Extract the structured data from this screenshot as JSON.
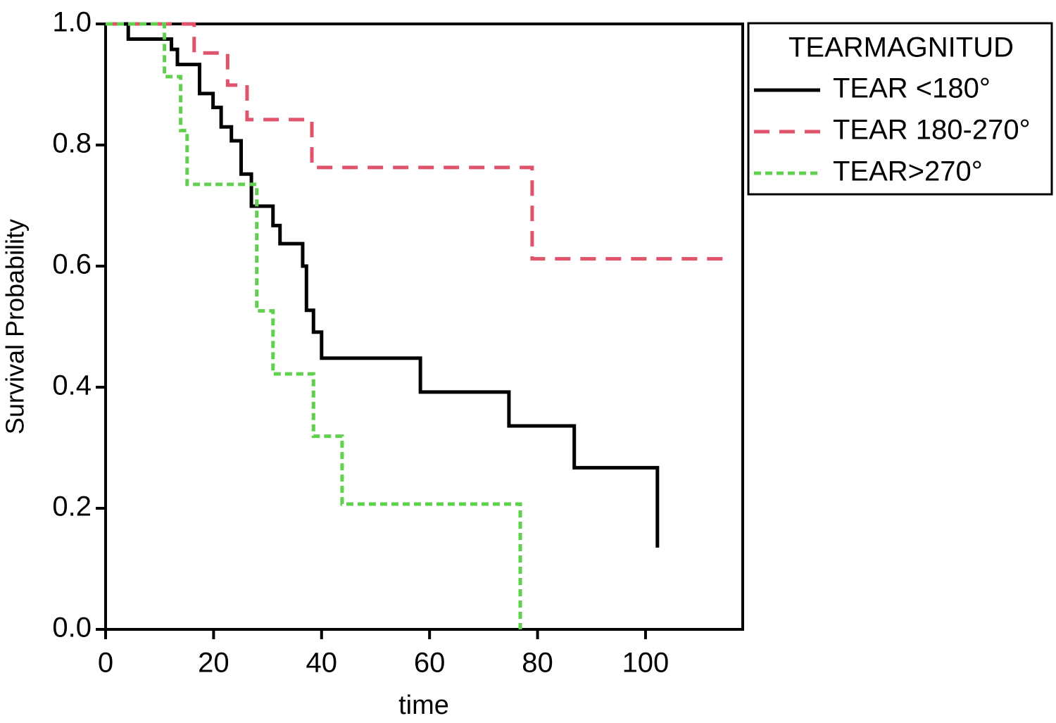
{
  "chart_data": {
    "type": "step",
    "x_label": "time",
    "y_label": "Survival Probability",
    "xlim": [
      0,
      118
    ],
    "ylim": [
      0,
      1
    ],
    "xticks": [
      0,
      20,
      40,
      60,
      80,
      100
    ],
    "yticks": [
      {
        "value": 0,
        "label": "0.0"
      },
      0.2,
      0.4,
      0.6,
      0.8,
      {
        "value": 1,
        "label": "1.0"
      }
    ],
    "legend_title": "TEARMAGNITUD",
    "legend_position": "outside-right",
    "series": [
      {
        "name": "TEAR <180°",
        "color": "#000000",
        "line_style": "solid",
        "x": [
          0,
          4.2,
          12.2,
          13.3,
          17.4,
          19.9,
          21.4,
          23.3,
          25.1,
          27,
          31,
          32.3,
          36.5,
          37.2,
          38.5,
          40,
          58.3,
          74.7,
          86.8,
          102.2
        ],
        "values": [
          1,
          0.975,
          0.958,
          0.933,
          0.885,
          0.862,
          0.83,
          0.807,
          0.752,
          0.699,
          0.667,
          0.637,
          0.6,
          0.527,
          0.491,
          0.448,
          0.392,
          0.336,
          0.267,
          0.135
        ]
      },
      {
        "name": "TEAR 180-270°",
        "color": "#df536b",
        "line_style": "dashed",
        "x": [
          0,
          16.4,
          22.6,
          26.2,
          38.2,
          79,
          114.8
        ],
        "values": [
          1,
          0.952,
          0.899,
          0.842,
          0.763,
          0.612,
          0.612
        ]
      },
      {
        "name": "TEAR>270°",
        "color": "#61d04f",
        "line_style": "dotted",
        "x": [
          0,
          10.9,
          13.9,
          15.1,
          28,
          31,
          38.5,
          43.8,
          76.8
        ],
        "values": [
          1,
          0.913,
          0.824,
          0.735,
          0.526,
          0.422,
          0.319,
          0.207,
          0
        ]
      }
    ]
  }
}
